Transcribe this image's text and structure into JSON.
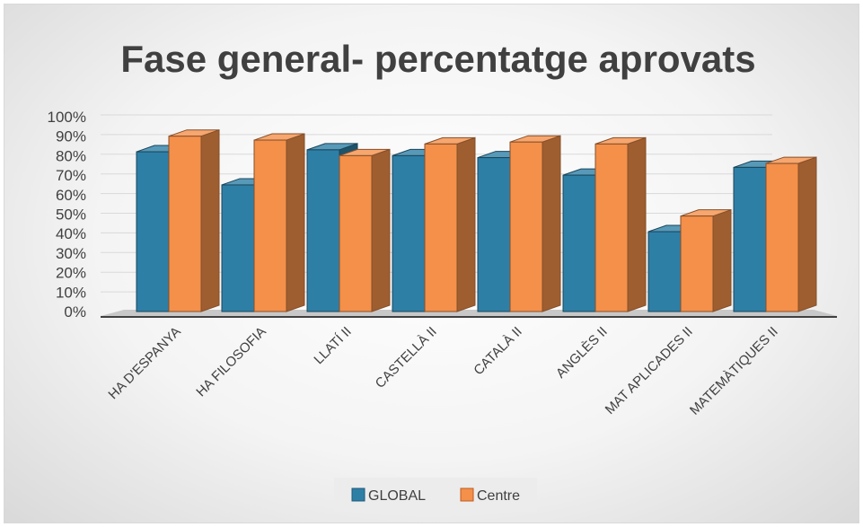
{
  "chart_data": {
    "type": "bar",
    "title": "Fase general- percentatge aprovats",
    "categories": [
      "HA D'ESPANYA",
      "HA FILOSOFIA",
      "LLATÍ II",
      "CASTELLÀ II",
      "CATALÀ II",
      "ANGLÈS II",
      "MAT APLICADES II",
      "MATEMÀTIQUES II"
    ],
    "series": [
      {
        "name": "GLOBAL",
        "values": [
          82,
          65,
          83,
          80,
          79,
          70,
          41,
          74
        ],
        "color": "#2e7fa6"
      },
      {
        "name": "Centre",
        "values": [
          90,
          88,
          80,
          86,
          87,
          86,
          49,
          76
        ],
        "color": "#f4904a"
      }
    ],
    "ylim": [
      0,
      100
    ],
    "yticks": [
      "0%",
      "10%",
      "20%",
      "30%",
      "40%",
      "50%",
      "60%",
      "70%",
      "80%",
      "90%",
      "100%"
    ],
    "grid": true,
    "legend": "bottom"
  }
}
